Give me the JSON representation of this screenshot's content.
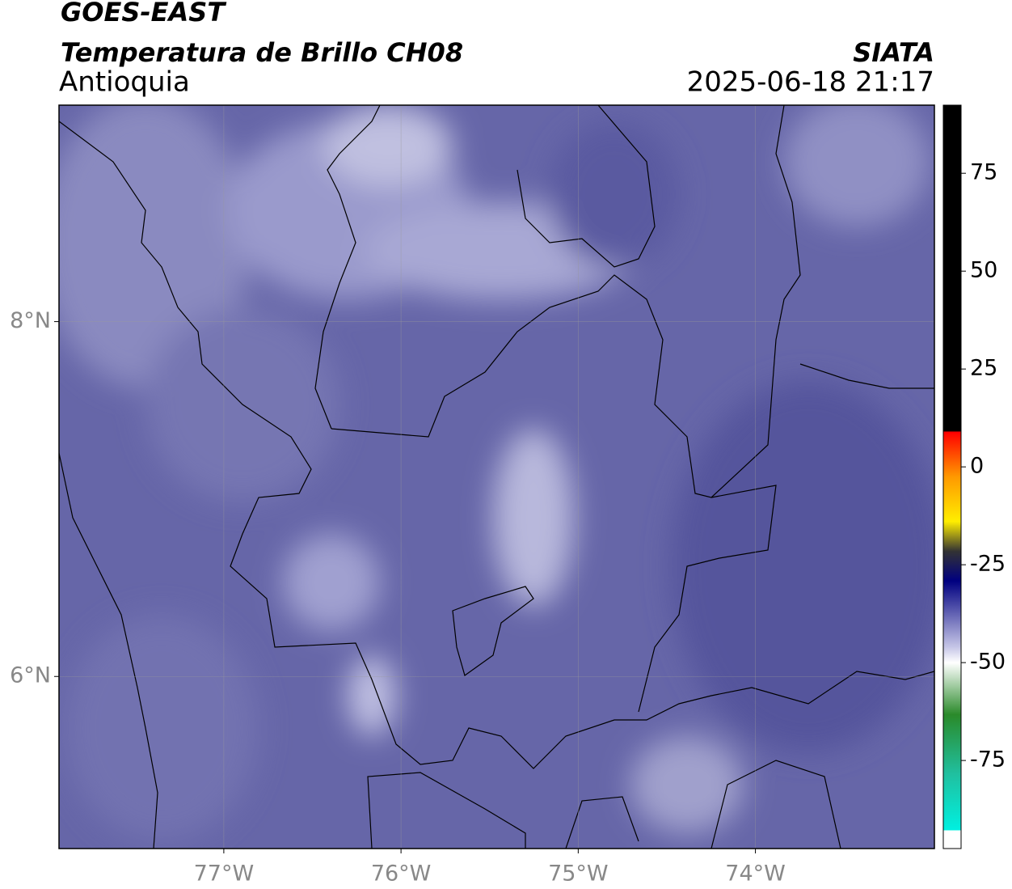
{
  "header": {
    "title": "GOES-EAST",
    "subtitle": "Temperatura de Brillo CH08",
    "region": "Antioquia",
    "source": "SIATA",
    "datetime": "2025-06-18 21:17"
  },
  "map": {
    "xlim": [
      -77.93,
      -72.99
    ],
    "ylim": [
      5.03,
      9.22
    ],
    "xticks": [
      {
        "value": -77,
        "label": "77°W"
      },
      {
        "value": -76,
        "label": "76°W"
      },
      {
        "value": -75,
        "label": "75°W"
      },
      {
        "value": -74,
        "label": "74°W"
      }
    ],
    "yticks": [
      {
        "value": 8,
        "label": "8°N"
      },
      {
        "value": 6,
        "label": "6°N"
      }
    ],
    "grid": true
  },
  "colorbar": {
    "lim": [
      -97.5,
      92.4
    ],
    "ticks": [
      75,
      50,
      25,
      0,
      -25,
      -50,
      -75
    ]
  }
}
